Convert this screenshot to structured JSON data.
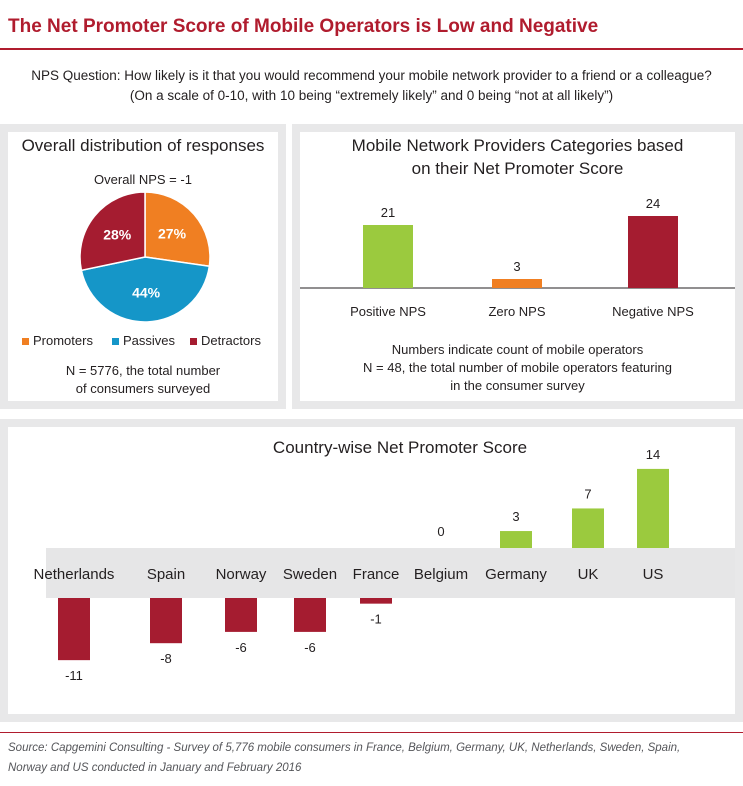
{
  "header": {
    "title": "The Net Promoter Score of Mobile Operators is Low and Negative",
    "question_line1": "NPS Question: How likely is it that you would recommend your mobile network provider to a friend or a colleague?",
    "question_line2": "(On a scale of 0-10, with 10 being “extremely likely” and 0 being “not at all likely”)"
  },
  "colors": {
    "brand": "#b01c2e",
    "promoters": "#f07f22",
    "passives": "#1596c8",
    "detractors": "#a51c30",
    "positive": "#9bca3e",
    "zero": "#f07f22",
    "negative": "#a51c30",
    "band": "#e6e6e7"
  },
  "pie_panel": {
    "title": "Overall distribution of responses",
    "subtitle": "Overall NPS = -1",
    "note_line1": "N = 5776, the total number",
    "note_line2": "of consumers surveyed"
  },
  "bar_panel": {
    "title_line1": "Mobile Network Providers Categories based",
    "title_line2": "on their Net Promoter Score",
    "note_line1": "Numbers indicate count of mobile operators",
    "note_line2": "N = 48, the total number of mobile operators featuring",
    "note_line3": "in the consumer survey"
  },
  "country_panel": {
    "title": "Country-wise Net Promoter Score"
  },
  "source": {
    "line1": "Source: Capgemini Consulting - Survey of 5,776 mobile consumers in France, Belgium, Germany, UK, Netherlands, Sweden, Spain,",
    "line2": "Norway and US conducted in January and February 2016"
  },
  "chart_data": [
    {
      "type": "pie",
      "title": "Overall distribution of responses",
      "subtitle": "Overall NPS = -1",
      "slices": [
        {
          "name": "Promoters",
          "value": 27,
          "label": "27%"
        },
        {
          "name": "Passives",
          "value": 44,
          "label": "44%"
        },
        {
          "name": "Detractors",
          "value": 28,
          "label": "28%"
        }
      ],
      "legend_position": "bottom"
    },
    {
      "type": "bar",
      "title": "Mobile Network Providers Categories based on their Net Promoter Score",
      "categories": [
        "Positive NPS",
        "Zero NPS",
        "Negative NPS"
      ],
      "values": [
        21,
        3,
        24
      ],
      "value_labels": [
        "21",
        "3",
        "24"
      ],
      "ylim": [
        0,
        24
      ]
    },
    {
      "type": "bar",
      "title": "Country-wise Net Promoter Score",
      "categories": [
        "Netherlands",
        "Spain",
        "Norway",
        "Sweden",
        "France",
        "Belgium",
        "Germany",
        "UK",
        "US"
      ],
      "values": [
        -11,
        -8,
        -6,
        -6,
        -1,
        0,
        3,
        7,
        14
      ],
      "value_labels": [
        "-11",
        "-8",
        "-6",
        "-6",
        "-1",
        "0",
        "3",
        "7",
        "14"
      ],
      "ylim": [
        -11,
        14
      ]
    }
  ]
}
